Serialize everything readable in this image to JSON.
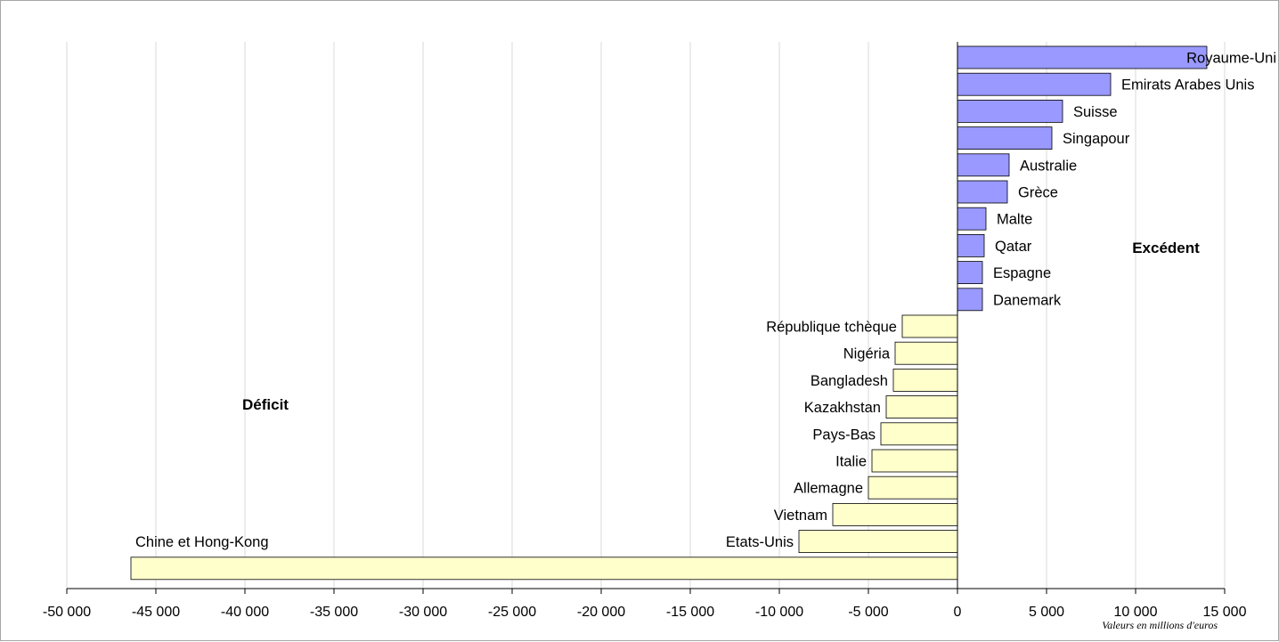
{
  "chart_data": {
    "type": "bar",
    "orientation": "horizontal",
    "categories": [
      "Royaume-Uni",
      "Emirats Arabes Unis",
      "Suisse",
      "Singapour",
      "Australie",
      "Grèce",
      "Malte",
      "Qatar",
      "Espagne",
      "Danemark",
      "République tchèque",
      "Nigéria",
      "Bangladesh",
      "Kazakhstan",
      "Pays-Bas",
      "Italie",
      "Allemagne",
      "Vietnam",
      "Etats-Unis",
      "Chine et Hong-Kong"
    ],
    "values": [
      14000,
      8600,
      5900,
      5300,
      2900,
      2800,
      1600,
      1500,
      1400,
      1400,
      -3100,
      -3500,
      -3600,
      -4000,
      -4300,
      -4800,
      -5000,
      -7000,
      -8900,
      -46400
    ],
    "colors": {
      "positive": "#9999ff",
      "negative": "#ffffcc",
      "bar_border": "#000000"
    },
    "xlim": [
      -50000,
      15000
    ],
    "xticks": [
      -50000,
      -45000,
      -40000,
      -35000,
      -30000,
      -25000,
      -20000,
      -15000,
      -10000,
      -5000,
      0,
      5000,
      10000,
      15000
    ],
    "xtick_labels": [
      "-50 000",
      "-45 000",
      "-40 000",
      "-35 000",
      "-30 000",
      "-25 000",
      "-20 000",
      "-15 000",
      "-10 000",
      "-5 000",
      "0",
      "5 000",
      "10 000",
      "15 000"
    ],
    "grid": "vertical",
    "annotations": {
      "surplus": "Excédent",
      "deficit": "Déficit"
    },
    "unit_note": "Valeurs en millions d'euros"
  }
}
